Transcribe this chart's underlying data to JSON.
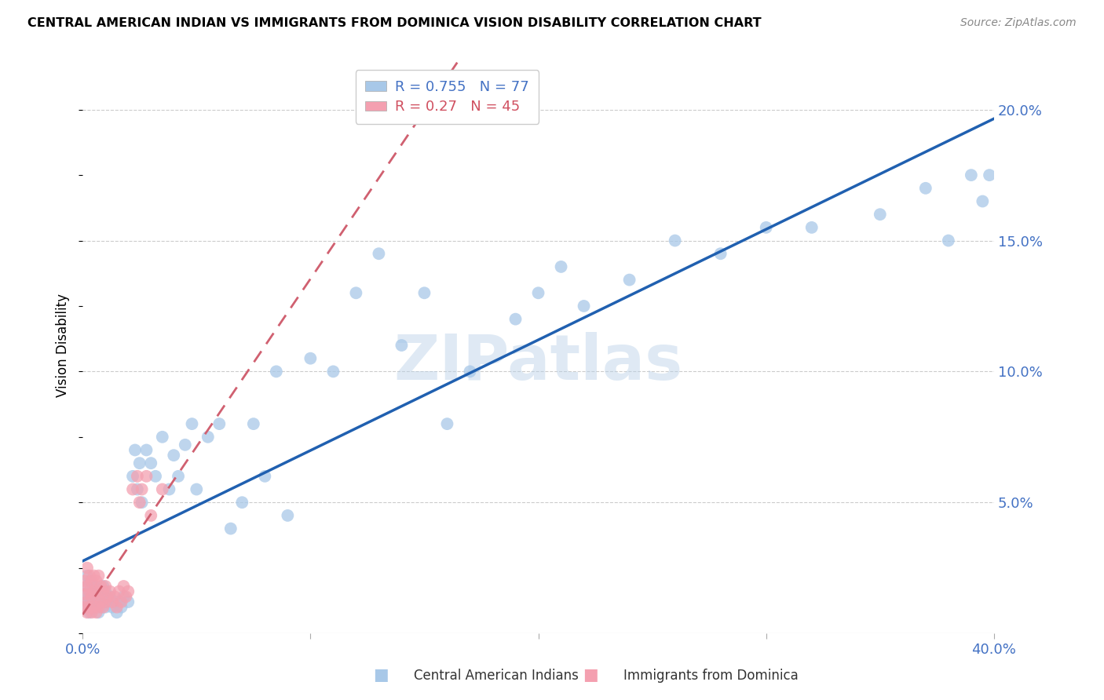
{
  "title": "CENTRAL AMERICAN INDIAN VS IMMIGRANTS FROM DOMINICA VISION DISABILITY CORRELATION CHART",
  "source": "Source: ZipAtlas.com",
  "ylabel": "Vision Disability",
  "xlim": [
    0.0,
    0.4
  ],
  "ylim": [
    0.0,
    0.22
  ],
  "yticks_right": [
    0.05,
    0.1,
    0.15,
    0.2
  ],
  "ytick_labels_right": [
    "5.0%",
    "10.0%",
    "15.0%",
    "20.0%"
  ],
  "xticks": [
    0.0,
    0.1,
    0.2,
    0.3,
    0.4
  ],
  "xtick_labels": [
    "0.0%",
    "",
    "",
    "",
    "40.0%"
  ],
  "blue_R": 0.755,
  "blue_N": 77,
  "pink_R": 0.27,
  "pink_N": 45,
  "legend_label_blue": "Central American Indians",
  "legend_label_pink": "Immigrants from Dominica",
  "blue_color": "#a8c8e8",
  "pink_color": "#f4a0b0",
  "blue_line_color": "#2060b0",
  "pink_line_color": "#d06070",
  "watermark": "ZIPatlas",
  "blue_x": [
    0.001,
    0.001,
    0.002,
    0.002,
    0.002,
    0.003,
    0.003,
    0.003,
    0.004,
    0.004,
    0.005,
    0.005,
    0.006,
    0.006,
    0.007,
    0.007,
    0.008,
    0.008,
    0.009,
    0.009,
    0.01,
    0.01,
    0.011,
    0.012,
    0.013,
    0.014,
    0.015,
    0.016,
    0.017,
    0.018,
    0.02,
    0.022,
    0.023,
    0.024,
    0.025,
    0.026,
    0.028,
    0.03,
    0.032,
    0.035,
    0.038,
    0.04,
    0.042,
    0.045,
    0.048,
    0.05,
    0.055,
    0.06,
    0.065,
    0.07,
    0.075,
    0.08,
    0.085,
    0.09,
    0.1,
    0.11,
    0.12,
    0.13,
    0.14,
    0.15,
    0.16,
    0.17,
    0.19,
    0.2,
    0.21,
    0.22,
    0.24,
    0.26,
    0.28,
    0.3,
    0.32,
    0.35,
    0.37,
    0.38,
    0.39,
    0.395,
    0.398
  ],
  "blue_y": [
    0.01,
    0.015,
    0.012,
    0.018,
    0.022,
    0.008,
    0.014,
    0.02,
    0.01,
    0.016,
    0.012,
    0.018,
    0.01,
    0.016,
    0.008,
    0.014,
    0.01,
    0.016,
    0.012,
    0.018,
    0.01,
    0.016,
    0.012,
    0.014,
    0.01,
    0.012,
    0.008,
    0.012,
    0.01,
    0.014,
    0.012,
    0.06,
    0.07,
    0.055,
    0.065,
    0.05,
    0.07,
    0.065,
    0.06,
    0.075,
    0.055,
    0.068,
    0.06,
    0.072,
    0.08,
    0.055,
    0.075,
    0.08,
    0.04,
    0.05,
    0.08,
    0.06,
    0.1,
    0.045,
    0.105,
    0.1,
    0.13,
    0.145,
    0.11,
    0.13,
    0.08,
    0.1,
    0.12,
    0.13,
    0.14,
    0.125,
    0.135,
    0.15,
    0.145,
    0.155,
    0.155,
    0.16,
    0.17,
    0.15,
    0.175,
    0.165,
    0.175
  ],
  "pink_x": [
    0.001,
    0.001,
    0.001,
    0.002,
    0.002,
    0.002,
    0.002,
    0.003,
    0.003,
    0.003,
    0.004,
    0.004,
    0.004,
    0.005,
    0.005,
    0.005,
    0.006,
    0.006,
    0.006,
    0.007,
    0.007,
    0.007,
    0.008,
    0.008,
    0.009,
    0.009,
    0.01,
    0.01,
    0.011,
    0.012,
    0.013,
    0.014,
    0.015,
    0.016,
    0.017,
    0.018,
    0.019,
    0.02,
    0.022,
    0.024,
    0.025,
    0.026,
    0.028,
    0.03,
    0.035
  ],
  "pink_y": [
    0.01,
    0.015,
    0.02,
    0.008,
    0.012,
    0.018,
    0.025,
    0.01,
    0.016,
    0.022,
    0.008,
    0.014,
    0.02,
    0.01,
    0.016,
    0.022,
    0.008,
    0.014,
    0.02,
    0.01,
    0.016,
    0.022,
    0.012,
    0.018,
    0.01,
    0.016,
    0.012,
    0.018,
    0.014,
    0.016,
    0.012,
    0.014,
    0.01,
    0.016,
    0.012,
    0.018,
    0.014,
    0.016,
    0.055,
    0.06,
    0.05,
    0.055,
    0.06,
    0.045,
    0.055
  ]
}
